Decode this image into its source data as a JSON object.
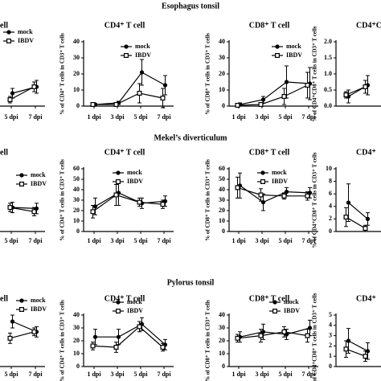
{
  "sections": [
    "Esophagus tonsil",
    "Mekel’s diverticulum",
    "Pylorus tonsil"
  ],
  "chart_data": [
    {
      "type": "line",
      "title": "ell",
      "categories": [
        null,
        null,
        "5 dpi",
        "7 dpi"
      ],
      "ylim": [
        0,
        40
      ],
      "yticks": [],
      "series": [
        {
          "name": "mock",
          "color": "#000",
          "values": [
            null,
            null,
            8,
            12
          ],
          "errors": [
            null,
            null,
            3,
            4
          ]
        },
        {
          "name": "IBDV",
          "color": "#000",
          "values": [
            null,
            null,
            4,
            12
          ],
          "errors": [
            null,
            null,
            2,
            3
          ]
        }
      ]
    },
    {
      "type": "line",
      "title": "CD4⁺ T cell",
      "ylabel": "% of CD4⁺ T cells in CD3⁺ T cells",
      "categories": [
        "1 dpi",
        "3 dpi",
        "5 dpi",
        "7 dpi"
      ],
      "ylim": [
        0,
        40
      ],
      "yticks": [
        0,
        10,
        20,
        30,
        40
      ],
      "series": [
        {
          "name": "mock",
          "color": "#000",
          "values": [
            1,
            2,
            21,
            13
          ],
          "errors": [
            0.5,
            1,
            8,
            6
          ]
        },
        {
          "name": "IBDV",
          "color": "#000",
          "values": [
            1,
            1,
            8,
            5
          ],
          "errors": [
            0.5,
            1,
            6,
            6
          ]
        }
      ]
    },
    {
      "type": "line",
      "title": "CD8⁺ T cell",
      "ylabel": "% of CD8⁺ T cells in CD3⁺ T cells",
      "categories": [
        "1 dpi",
        "3 dpi",
        "5 dpi",
        "7 dpi"
      ],
      "ylim": [
        0,
        40
      ],
      "yticks": [
        0,
        10,
        20,
        30,
        40
      ],
      "series": [
        {
          "name": "mock",
          "color": "#000",
          "values": [
            1,
            4,
            15,
            14
          ],
          "errors": [
            1,
            2,
            10,
            10
          ]
        },
        {
          "name": "IBDV",
          "color": "#000",
          "values": [
            0.5,
            1,
            6,
            13
          ],
          "errors": [
            0.5,
            1,
            5,
            8
          ]
        }
      ]
    },
    {
      "type": "line",
      "title": "CD4⁺C",
      "ylabel": "% of CD4⁺CD8⁺ T cells in CD3⁺ T cells",
      "categories": [
        null,
        null,
        null,
        null
      ],
      "ylim": [
        0,
        2
      ],
      "yticks": [
        {
          "value": 0,
          "label": "0.0"
        },
        {
          "value": 0.5,
          "label": "0.5"
        },
        {
          "value": 1,
          "label": "1.0"
        },
        {
          "value": 1.5,
          "label": "1.5"
        },
        {
          "value": 2,
          "label": "2.0"
        }
      ],
      "series": [
        {
          "name": "mock",
          "color": "#000",
          "values": [
            0.3,
            0.65,
            null,
            null
          ],
          "errors": [
            0.2,
            0.3,
            null,
            null
          ]
        },
        {
          "name": "IBDV",
          "color": "#000",
          "values": [
            0.35,
            0.6,
            null,
            null
          ],
          "errors": [
            0.1,
            0.2,
            null,
            null
          ]
        }
      ]
    },
    {
      "type": "line",
      "title": "ell",
      "categories": [
        null,
        null,
        "5 dpi",
        "7 dpi"
      ],
      "ylim": [
        0,
        60
      ],
      "yticks": [],
      "series": [
        {
          "name": "mock",
          "color": "#000",
          "values": [
            null,
            null,
            23,
            22
          ],
          "errors": [
            null,
            null,
            5,
            5
          ]
        },
        {
          "name": "IBDV",
          "color": "#000",
          "values": [
            null,
            null,
            23,
            19
          ],
          "errors": [
            null,
            null,
            4,
            4
          ]
        }
      ]
    },
    {
      "type": "line",
      "title": "CD4⁺ T cell",
      "ylabel": "% of CD4⁺ T cells in CD3⁺ T cells",
      "categories": [
        "1 dpi",
        "3 dpi",
        "5 dpi",
        "7 dpi"
      ],
      "ylim": [
        0,
        60
      ],
      "yticks": [
        0,
        10,
        20,
        30,
        40,
        50,
        60
      ],
      "series": [
        {
          "name": "mock",
          "color": "#000",
          "values": [
            24,
            37,
            27,
            29
          ],
          "errors": [
            8,
            12,
            5,
            5
          ]
        },
        {
          "name": "IBDV",
          "color": "#000",
          "values": [
            19,
            35,
            28,
            26
          ],
          "errors": [
            6,
            10,
            4,
            4
          ]
        }
      ]
    },
    {
      "type": "line",
      "title": "CD8⁺ T cell",
      "ylabel": "% of CD8⁺ T cells in CD3⁺ T cells",
      "categories": [
        "1 dpi",
        "3 dpi",
        "5 dpi",
        "7 dpi"
      ],
      "ylim": [
        0,
        60
      ],
      "yticks": [
        0,
        10,
        20,
        30,
        40,
        50,
        60
      ],
      "series": [
        {
          "name": "mock",
          "color": "#000",
          "values": [
            44,
            28,
            38,
            37
          ],
          "errors": [
            12,
            8,
            4,
            5
          ]
        },
        {
          "name": "IBDV",
          "color": "#000",
          "values": [
            42,
            35,
            34,
            34
          ],
          "errors": [
            10,
            6,
            3,
            4
          ]
        }
      ]
    },
    {
      "type": "line",
      "title": "CD4⁺",
      "ylabel": "% of CD4⁺CD8⁺ T cells in CD3⁺ T cells",
      "categories": [
        null,
        null,
        null,
        null
      ],
      "ylim": [
        0,
        10
      ],
      "yticks": [
        0,
        2,
        4,
        6,
        8,
        10
      ],
      "series": [
        {
          "name": "mock",
          "color": "#000",
          "values": [
            4.6,
            2,
            null,
            null
          ],
          "errors": [
            3,
            1,
            null,
            null
          ]
        },
        {
          "name": "IBDV",
          "color": "#000",
          "values": [
            2.3,
            0.5,
            null,
            null
          ],
          "errors": [
            1.5,
            0.5,
            null,
            null
          ]
        }
      ]
    },
    {
      "type": "line",
      "title": "ell",
      "categories": [
        null,
        null,
        "5 dpi",
        "7 dpi"
      ],
      "ylim": [
        0,
        40
      ],
      "yticks": [],
      "series": [
        {
          "name": "mock",
          "color": "#000",
          "values": [
            null,
            null,
            35,
            27
          ],
          "errors": [
            null,
            null,
            5,
            4
          ]
        },
        {
          "name": "IBDV",
          "color": "#000",
          "values": [
            null,
            null,
            22,
            27
          ],
          "errors": [
            null,
            null,
            4,
            3
          ]
        }
      ]
    },
    {
      "type": "line",
      "title": "CD4⁺ T cell",
      "ylabel": "% of CD4⁺ T cells in CD3⁺ T cells",
      "categories": [
        "1 dpi",
        "3 dpi",
        "5 dpi",
        "7 dpi"
      ],
      "ylim": [
        0,
        40
      ],
      "yticks": [
        0,
        10,
        20,
        30,
        40
      ],
      "series": [
        {
          "name": "mock",
          "color": "#000",
          "values": [
            23,
            23,
            33,
            17
          ],
          "errors": [
            6,
            6,
            5,
            4
          ]
        },
        {
          "name": "IBDV",
          "color": "#000",
          "values": [
            16,
            15,
            31,
            15
          ],
          "errors": [
            3,
            4,
            4,
            3
          ]
        }
      ]
    },
    {
      "type": "line",
      "title": "CD8⁺ T cell",
      "ylabel": "% of CD8⁺ T cells in CD3⁺ T cells",
      "categories": [
        "1 dpi",
        "3 dpi",
        "5 dpi",
        "7 dpi"
      ],
      "ylim": [
        0,
        40
      ],
      "yticks": [
        0,
        10,
        20,
        30,
        40
      ],
      "series": [
        {
          "name": "mock",
          "color": "#000",
          "values": [
            23,
            27,
            25,
            30
          ],
          "errors": [
            4,
            6,
            4,
            6
          ]
        },
        {
          "name": "IBDV",
          "color": "#000",
          "values": [
            22,
            24,
            27,
            24
          ],
          "errors": [
            3,
            5,
            4,
            5
          ]
        }
      ]
    },
    {
      "type": "line",
      "title": "CD4⁺",
      "ylabel": "% of CD4⁺CD8⁺ T cells in CD3⁺ T cells",
      "categories": [
        null,
        null,
        null,
        null
      ],
      "ylim": [
        0,
        5
      ],
      "yticks": [
        0,
        1,
        2,
        3,
        4,
        5
      ],
      "series": [
        {
          "name": "mock",
          "color": "#000",
          "values": [
            2.5,
            1.5,
            null,
            null
          ],
          "errors": [
            1.2,
            0.8,
            null,
            null
          ]
        },
        {
          "name": "IBDV",
          "color": "#000",
          "values": [
            1.7,
            1,
            null,
            null
          ],
          "errors": [
            0.8,
            0.5,
            null,
            null
          ]
        }
      ]
    }
  ]
}
